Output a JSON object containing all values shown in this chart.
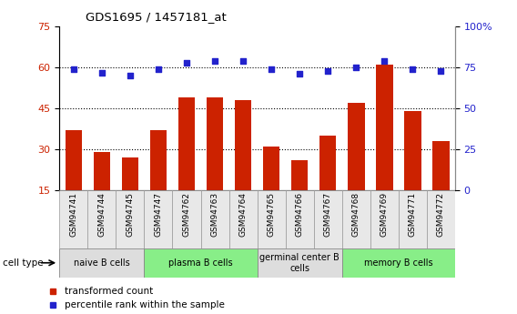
{
  "title": "GDS1695 / 1457181_at",
  "samples": [
    "GSM94741",
    "GSM94744",
    "GSM94745",
    "GSM94747",
    "GSM94762",
    "GSM94763",
    "GSM94764",
    "GSM94765",
    "GSM94766",
    "GSM94767",
    "GSM94768",
    "GSM94769",
    "GSM94771",
    "GSM94772"
  ],
  "bar_values": [
    37,
    29,
    27,
    37,
    49,
    49,
    48,
    31,
    26,
    35,
    47,
    61,
    44,
    33
  ],
  "dot_values": [
    74,
    72,
    70,
    74,
    78,
    79,
    79,
    74,
    71,
    73,
    75,
    79,
    74,
    73
  ],
  "bar_color": "#cc2200",
  "dot_color": "#2222cc",
  "ylim_left": [
    15,
    75
  ],
  "ylim_right": [
    0,
    100
  ],
  "yticks_left": [
    15,
    30,
    45,
    60,
    75
  ],
  "yticks_right": [
    0,
    25,
    50,
    75,
    100
  ],
  "ytick_labels_right": [
    "0",
    "25",
    "50",
    "75",
    "100%"
  ],
  "grid_values": [
    30,
    45,
    60
  ],
  "cell_groups": [
    {
      "label": "naive B cells",
      "start": 0,
      "end": 3,
      "color": "#dddddd"
    },
    {
      "label": "plasma B cells",
      "start": 3,
      "end": 7,
      "color": "#88ee88"
    },
    {
      "label": "germinal center B\ncells",
      "start": 7,
      "end": 10,
      "color": "#dddddd"
    },
    {
      "label": "memory B cells",
      "start": 10,
      "end": 14,
      "color": "#88ee88"
    }
  ],
  "legend_bar_label": "transformed count",
  "legend_dot_label": "percentile rank within the sample",
  "cell_type_label": "cell type"
}
